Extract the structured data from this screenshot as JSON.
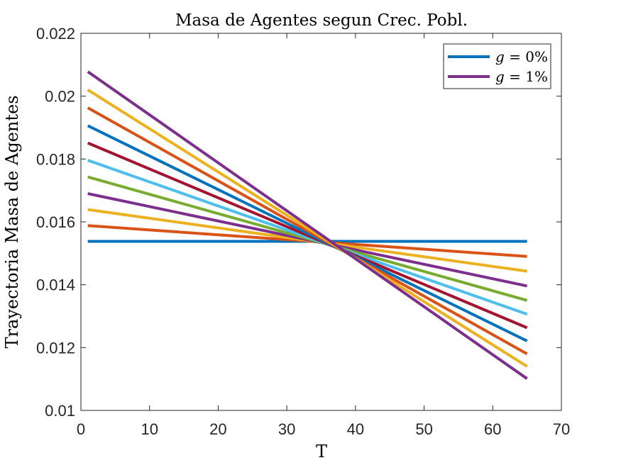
{
  "chart_data": {
    "type": "line",
    "title": "Masa de Agentes segun Crec. Pobl.",
    "xlabel": "T",
    "ylabel": "Trayectoria Masa de Agentes",
    "xlim": [
      0,
      70
    ],
    "ylim": [
      0.01,
      0.022
    ],
    "xticks": [
      "0",
      "10",
      "20",
      "30",
      "40",
      "50",
      "60",
      "70"
    ],
    "yticks": [
      "0.01",
      "0.012",
      "0.014",
      "0.016",
      "0.018",
      "0.02",
      "0.022"
    ],
    "grid": false,
    "legend_position": "top-right",
    "legend": [
      {
        "label": "g = 0%",
        "var": "g",
        "value": "0%",
        "color": "#0072BD"
      },
      {
        "label": "g = 1%",
        "var": "g",
        "value": "1%",
        "color": "#7E2F8E"
      }
    ],
    "series": [
      {
        "x": [
          1,
          65
        ],
        "y": [
          0.01538,
          0.01538
        ],
        "color": "#0072BD"
      },
      {
        "x": [
          1,
          65
        ],
        "y": [
          0.01588,
          0.0149
        ],
        "color": "#D95319"
      },
      {
        "x": [
          1,
          65
        ],
        "y": [
          0.01639,
          0.01443
        ],
        "color": "#EDB120"
      },
      {
        "x": [
          1,
          65
        ],
        "y": [
          0.0169,
          0.01396
        ],
        "color": "#7E2F8E"
      },
      {
        "x": [
          1,
          65
        ],
        "y": [
          0.01743,
          0.0135
        ],
        "color": "#77AC30"
      },
      {
        "x": [
          1,
          65
        ],
        "y": [
          0.01796,
          0.01306
        ],
        "color": "#4DBEEE"
      },
      {
        "x": [
          1,
          65
        ],
        "y": [
          0.01851,
          0.01263
        ],
        "color": "#A2142F"
      },
      {
        "x": [
          1,
          65
        ],
        "y": [
          0.01906,
          0.01221
        ],
        "color": "#0072BD"
      },
      {
        "x": [
          1,
          65
        ],
        "y": [
          0.01963,
          0.0118
        ],
        "color": "#D95319"
      },
      {
        "x": [
          1,
          65
        ],
        "y": [
          0.0202,
          0.0114
        ],
        "color": "#EDB120"
      },
      {
        "x": [
          1,
          65
        ],
        "y": [
          0.02078,
          0.01101
        ],
        "color": "#7E2F8E"
      }
    ]
  }
}
